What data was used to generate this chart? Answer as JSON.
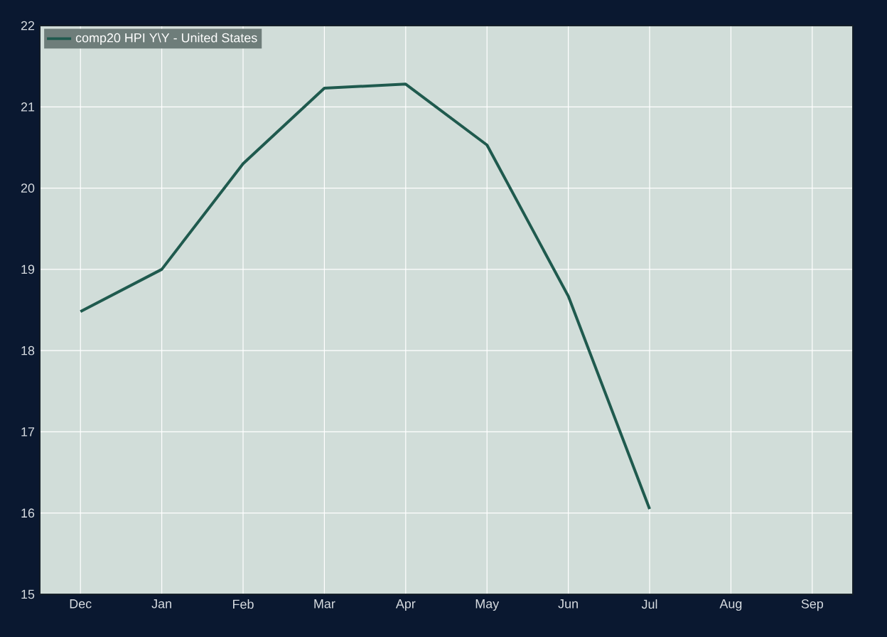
{
  "chart_data": {
    "type": "line",
    "categories": [
      "Dec",
      "Jan",
      "Feb",
      "Mar",
      "Apr",
      "May",
      "Jun",
      "Jul",
      "Aug",
      "Sep"
    ],
    "series": [
      {
        "name": "comp20 HPI Y\\Y - United States",
        "color": "#1f5a4e",
        "values": [
          18.48,
          19.0,
          20.3,
          21.23,
          21.28,
          20.53,
          18.67,
          16.05,
          null,
          null
        ]
      }
    ],
    "ylim": [
      15,
      22
    ],
    "yticks": [
      15,
      16,
      17,
      18,
      19,
      20,
      21,
      22
    ],
    "grid": true,
    "legend": "top left",
    "marker": "none",
    "line_style": "solid"
  }
}
